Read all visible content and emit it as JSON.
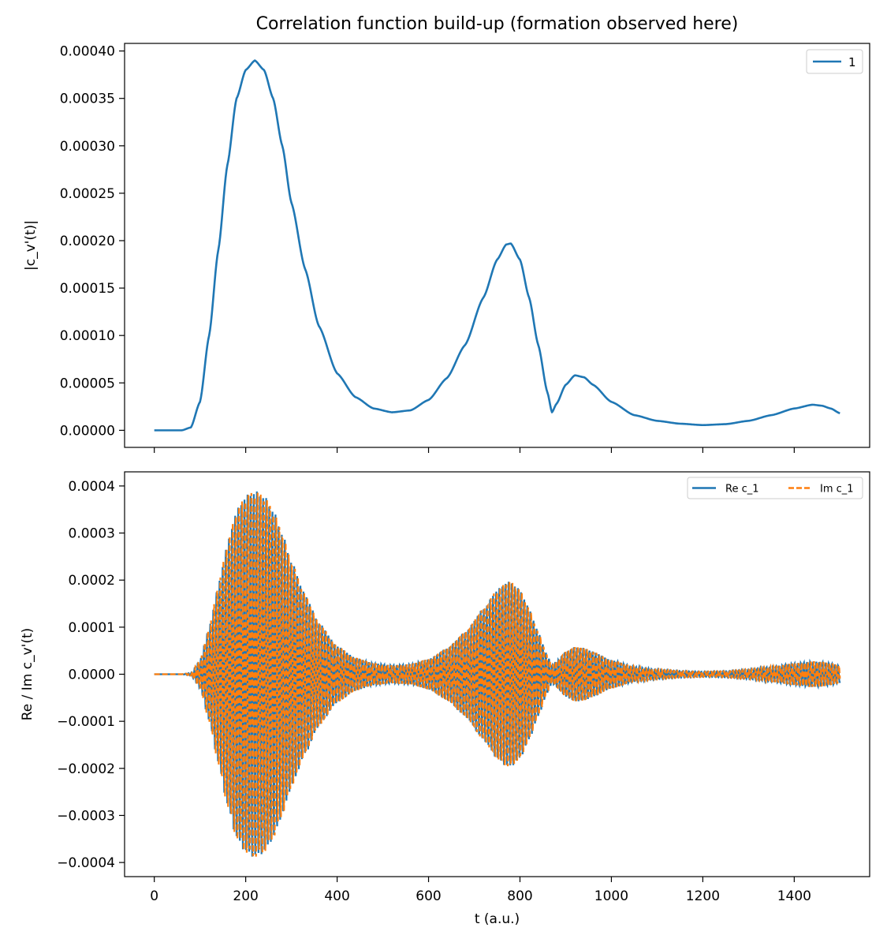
{
  "chart_data": [
    {
      "type": "line",
      "title": "Correlation function build-up (formation observed here)",
      "xlabel": "",
      "ylabel": "|c_v'(t)|",
      "xlim": [
        -65,
        1565
      ],
      "ylim": [
        -1.8e-05,
        0.000408
      ],
      "xticks": [
        0,
        200,
        400,
        600,
        800,
        1000,
        1200,
        1400
      ],
      "yticks": [
        "0.00000",
        "0.00005",
        "0.00010",
        "0.00015",
        "0.00020",
        "0.00025",
        "0.00030",
        "0.00035",
        "0.00040"
      ],
      "ytick_values": [
        0,
        5e-05,
        0.0001,
        0.00015,
        0.0002,
        0.00025,
        0.0003,
        0.00035,
        0.0004
      ],
      "legend": "top-right",
      "series": [
        {
          "name": "1",
          "color": "#1f77b4",
          "x": [
            0,
            60,
            80,
            100,
            120,
            140,
            160,
            180,
            200,
            220,
            240,
            260,
            280,
            300,
            330,
            360,
            400,
            440,
            480,
            520,
            560,
            600,
            640,
            680,
            720,
            750,
            770,
            780,
            800,
            820,
            840,
            860,
            870,
            880,
            900,
            920,
            940,
            960,
            1000,
            1050,
            1100,
            1150,
            1200,
            1250,
            1300,
            1350,
            1400,
            1440,
            1460,
            1480,
            1500
          ],
          "y": [
            0,
            0,
            3e-06,
            3e-05,
            0.0001,
            0.00019,
            0.00028,
            0.00035,
            0.00038,
            0.00039,
            0.00038,
            0.00035,
            0.0003,
            0.00024,
            0.00017,
            0.00011,
            6e-05,
            3.5e-05,
            2.3e-05,
            1.9e-05,
            2.1e-05,
            3.2e-05,
            5.5e-05,
            9e-05,
            0.00014,
            0.00018,
            0.000196,
            0.000197,
            0.00018,
            0.00014,
            9e-05,
            4e-05,
            1.9e-05,
            2.8e-05,
            4.8e-05,
            5.8e-05,
            5.6e-05,
            4.8e-05,
            3e-05,
            1.6e-05,
            1e-05,
            7e-06,
            5.5e-06,
            6.5e-06,
            1e-05,
            1.6e-05,
            2.3e-05,
            2.7e-05,
            2.6e-05,
            2.3e-05,
            1.8e-05
          ]
        }
      ]
    },
    {
      "type": "line",
      "title": "",
      "xlabel": "t (a.u.)",
      "ylabel": "Re / Im c_v'(t)",
      "xlim": [
        -65,
        1565
      ],
      "ylim": [
        -0.00043,
        0.00043
      ],
      "xticks": [
        0,
        200,
        400,
        600,
        800,
        1000,
        1200,
        1400
      ],
      "yticks": [
        "−0.0004",
        "−0.0003",
        "−0.0002",
        "−0.0001",
        "0.0000",
        "0.0001",
        "0.0002",
        "0.0003",
        "0.0004"
      ],
      "ytick_values": [
        -0.0004,
        -0.0003,
        -0.0002,
        -0.0001,
        0,
        0.0001,
        0.0002,
        0.0003,
        0.0004
      ],
      "legend": "top-right",
      "oscillation_period": 6.8,
      "envelope": "same as |c_v'(t)| in upper panel",
      "series": [
        {
          "name": "Re c_1",
          "color": "#1f77b4",
          "style": "solid",
          "phase": 0
        },
        {
          "name": "Im c_1",
          "color": "#ff7f0e",
          "style": "dashed",
          "phase": -1.5708
        }
      ]
    }
  ]
}
